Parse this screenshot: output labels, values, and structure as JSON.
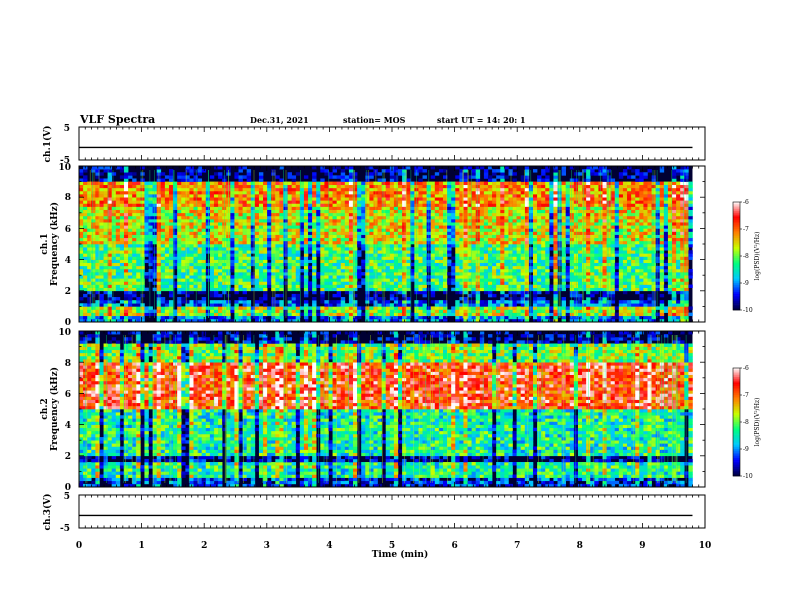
{
  "header": {
    "title": "VLF Spectra",
    "date": "Dec.31, 2021",
    "station": "station= MOS",
    "start": "start  UT =   14: 20: 1"
  },
  "colors": {
    "background": "#ffffff",
    "axis": "#000000",
    "spectrogram_floor": "#000033",
    "colormap": [
      "#00003c",
      "#0000ff",
      "#00c8ff",
      "#00ff80",
      "#c8ff00",
      "#ff8000",
      "#ff0000",
      "#ffffff"
    ]
  },
  "chart_data": [
    {
      "type": "line",
      "id": "ch1-waveform",
      "ylabel": "ch.1(V)",
      "ylim": [
        -5,
        5
      ],
      "yticks": [
        "5",
        "-5"
      ],
      "xlim": [
        0,
        10
      ],
      "series": [
        {
          "x": [
            0,
            9.8
          ],
          "y": [
            -1.2,
            -1.2
          ]
        }
      ]
    },
    {
      "type": "heatmap",
      "id": "ch1-spectrogram",
      "ylabel": "ch.1\nFrequency (kHz)",
      "ylabel_lines": [
        "ch.1",
        "Frequency  (kHz)"
      ],
      "ylim": [
        0,
        10
      ],
      "yticks": [
        "0",
        "2",
        "4",
        "6",
        "8",
        "10"
      ],
      "xlim": [
        0,
        10
      ],
      "data_xmax": 9.8,
      "colorbar": {
        "range": [
          -10,
          -6
        ],
        "ticks": [
          "-6",
          "-7",
          "-8",
          "-9",
          "-10"
        ],
        "label": "log(PSD)(V²/Hz)"
      },
      "band_profile_khz": [
        {
          "f": [
            0.0,
            0.5
          ],
          "level": 0.25
        },
        {
          "f": [
            0.5,
            1.0
          ],
          "level": 0.55
        },
        {
          "f": [
            1.0,
            1.5
          ],
          "level": 0.2
        },
        {
          "f": [
            1.5,
            2.0
          ],
          "level": 0.05
        },
        {
          "f": [
            2.0,
            5.0
          ],
          "level": 0.45
        },
        {
          "f": [
            5.0,
            7.5
          ],
          "level": 0.6
        },
        {
          "f": [
            7.5,
            9.0
          ],
          "level": 0.72
        },
        {
          "f": [
            9.0,
            10.0
          ],
          "level": 0.05
        }
      ]
    },
    {
      "type": "heatmap",
      "id": "ch2-spectrogram",
      "ylabel": "ch.2\nFrequency (kHz)",
      "ylabel_lines": [
        "ch.2",
        "Frequency  (kHz)"
      ],
      "ylim": [
        0,
        10
      ],
      "yticks": [
        "0",
        "2",
        "4",
        "6",
        "8",
        "10"
      ],
      "xlim": [
        0,
        10
      ],
      "data_xmax": 9.8,
      "colorbar": {
        "range": [
          -10,
          -6
        ],
        "ticks": [
          "-6",
          "-7",
          "-8",
          "-9",
          "-10"
        ],
        "label": "log(PSD)(V²/Hz)"
      },
      "band_profile_khz": [
        {
          "f": [
            0.0,
            0.7
          ],
          "level": 0.15
        },
        {
          "f": [
            0.7,
            1.7
          ],
          "level": 0.4
        },
        {
          "f": [
            1.7,
            2.0
          ],
          "level": 0.05
        },
        {
          "f": [
            2.0,
            5.0
          ],
          "level": 0.4
        },
        {
          "f": [
            5.0,
            8.0
          ],
          "level": 0.82
        },
        {
          "f": [
            8.0,
            9.2
          ],
          "level": 0.5
        },
        {
          "f": [
            9.2,
            10.0
          ],
          "level": 0.05
        }
      ]
    },
    {
      "type": "line",
      "id": "ch3-waveform",
      "ylabel": "ch.3(V)",
      "ylim": [
        -5,
        5
      ],
      "yticks": [
        "5",
        "-5"
      ],
      "xlim": [
        0,
        10
      ],
      "xlabel": "Time  (min)",
      "xticks": [
        "0",
        "1",
        "2",
        "3",
        "4",
        "5",
        "6",
        "7",
        "8",
        "9",
        "10"
      ],
      "series": [
        {
          "x": [
            0,
            9.8
          ],
          "y": [
            -1.2,
            -1.2
          ]
        }
      ]
    }
  ]
}
